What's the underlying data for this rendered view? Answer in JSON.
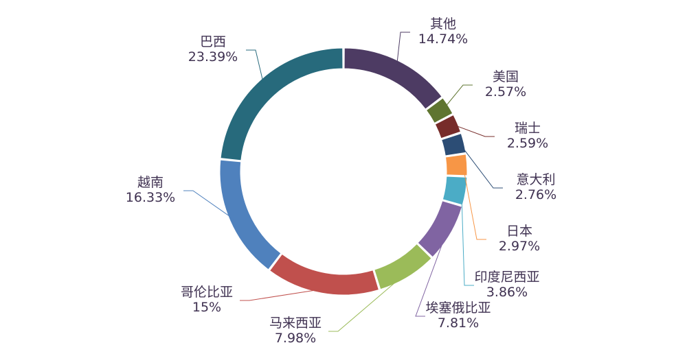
{
  "chart_data": {
    "type": "pie",
    "variant": "donut",
    "title": "",
    "legend": "none",
    "unit": "%",
    "slices": [
      {
        "label": "其他",
        "value": 14.74,
        "value_label": "14.74%",
        "color": "#4d3b63"
      },
      {
        "label": "美国",
        "value": 2.57,
        "value_label": "2.57%",
        "color": "#5f7530"
      },
      {
        "label": "瑞士",
        "value": 2.59,
        "value_label": "2.59%",
        "color": "#772c2a"
      },
      {
        "label": "意大利",
        "value": 2.76,
        "value_label": "2.76%",
        "color": "#2c4d75"
      },
      {
        "label": "日本",
        "value": 2.97,
        "value_label": "2.97%",
        "color": "#f79646"
      },
      {
        "label": "印度尼西亚",
        "value": 3.86,
        "value_label": "3.86%",
        "color": "#4bacc6"
      },
      {
        "label": "埃塞俄比亚",
        "value": 7.81,
        "value_label": "7.81%",
        "color": "#8064a2"
      },
      {
        "label": "马来西亚",
        "value": 7.98,
        "value_label": "7.98%",
        "color": "#9bbb59"
      },
      {
        "label": "哥伦比亚",
        "value": 15,
        "value_label": "15%",
        "color": "#c0504d"
      },
      {
        "label": "越南",
        "value": 16.33,
        "value_label": "16.33%",
        "color": "#4f81bd"
      },
      {
        "label": "巴西",
        "value": 23.39,
        "value_label": "23.39%",
        "color": "#276a7c"
      }
    ]
  }
}
